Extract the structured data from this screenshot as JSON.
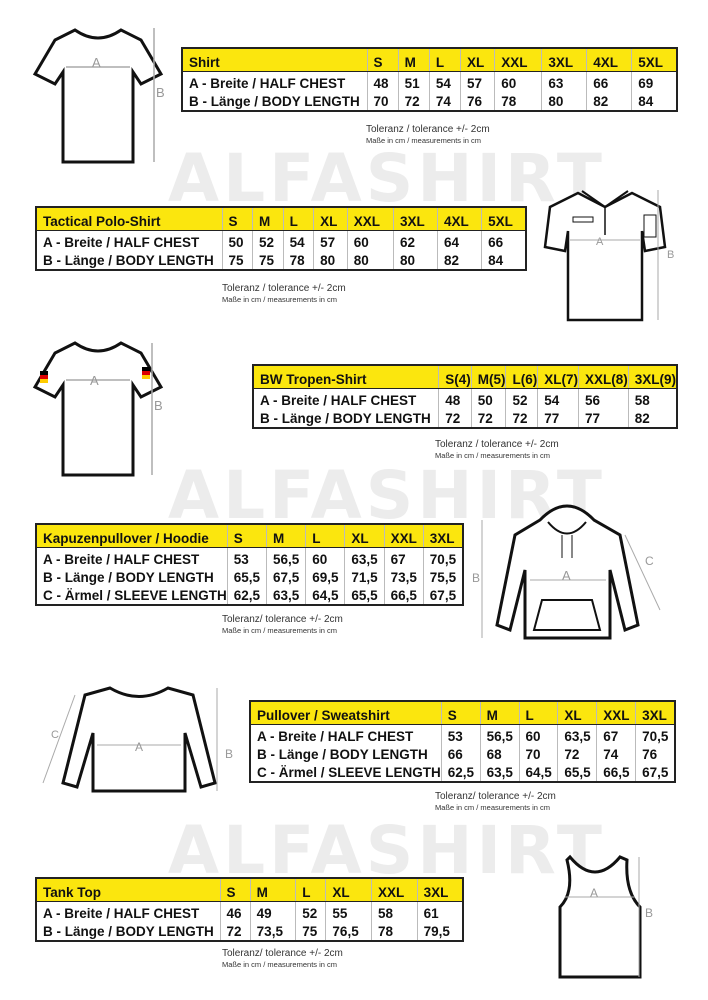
{
  "watermark": "ALFASHIRT",
  "tolerance": {
    "standard": "Toleranz / tolerance +/- 2cm",
    "compact": "Toleranz/ tolerance +/- 2cm",
    "units": "Maße in cm / measurements in cm"
  },
  "diagram_labels": {
    "a": "A",
    "b": "B",
    "c": "C"
  },
  "tables": [
    {
      "title": "Shirt",
      "sizes": [
        "S",
        "M",
        "L",
        "XL",
        "XXL",
        "3XL",
        "4XL",
        "5XL"
      ],
      "rows": [
        {
          "label": "A -  Breite / HALF CHEST",
          "values": [
            "48",
            "51",
            "54",
            "57",
            "60",
            "63",
            "66",
            "69"
          ]
        },
        {
          "label": "B -  Länge / BODY LENGTH",
          "values": [
            "70",
            "72",
            "74",
            "76",
            "78",
            "80",
            "82",
            "84"
          ]
        }
      ]
    },
    {
      "title": "Tactical Polo-Shirt",
      "sizes": [
        "S",
        "M",
        "L",
        "XL",
        "XXL",
        "3XL",
        "4XL",
        "5XL"
      ],
      "rows": [
        {
          "label": "A -  Breite / HALF CHEST",
          "values": [
            "50",
            "52",
            "54",
            "57",
            "60",
            "62",
            "64",
            "66"
          ]
        },
        {
          "label": "B -  Länge / BODY LENGTH",
          "values": [
            "75",
            "75",
            "78",
            "80",
            "80",
            "80",
            "82",
            "84"
          ]
        }
      ]
    },
    {
      "title": "BW Tropen-Shirt",
      "sizes": [
        "S(4)",
        "M(5)",
        "L(6)",
        "XL(7)",
        "XXL(8)",
        "3XL(9)"
      ],
      "rows": [
        {
          "label": "A -  Breite / HALF CHEST",
          "values": [
            "48",
            "50",
            "52",
            "54",
            "56",
            "58"
          ]
        },
        {
          "label": "B -  Länge / BODY LENGTH",
          "values": [
            "72",
            "72",
            "72",
            "77",
            "77",
            "82"
          ]
        }
      ]
    },
    {
      "title": "Kapuzenpullover / Hoodie",
      "sizes": [
        "S",
        "M",
        "L",
        "XL",
        "XXL",
        "3XL"
      ],
      "rows": [
        {
          "label": "A -  Breite / HALF CHEST",
          "values": [
            "53",
            "56,5",
            "60",
            "63,5",
            "67",
            "70,5"
          ]
        },
        {
          "label": "B -  Länge / BODY LENGTH",
          "values": [
            "65,5",
            "67,5",
            "69,5",
            "71,5",
            "73,5",
            "75,5"
          ]
        },
        {
          "label": "C -  Ärmel / SLEEVE LENGTH",
          "values": [
            "62,5",
            "63,5",
            "64,5",
            "65,5",
            "66,5",
            "67,5"
          ]
        }
      ]
    },
    {
      "title": "Pullover / Sweatshirt",
      "sizes": [
        "S",
        "M",
        "L",
        "XL",
        "XXL",
        "3XL"
      ],
      "rows": [
        {
          "label": "A -  Breite / HALF CHEST",
          "values": [
            "53",
            "56,5",
            "60",
            "63,5",
            "67",
            "70,5"
          ]
        },
        {
          "label": "B -  Länge / BODY LENGTH",
          "values": [
            "66",
            "68",
            "70",
            "72",
            "74",
            "76"
          ]
        },
        {
          "label": "C -  Ärmel / SLEEVE LENGTH",
          "values": [
            "62,5",
            "63,5",
            "64,5",
            "65,5",
            "66,5",
            "67,5"
          ]
        }
      ]
    },
    {
      "title": "Tank Top",
      "sizes": [
        "S",
        "M",
        "L",
        "XL",
        "XXL",
        "3XL"
      ],
      "rows": [
        {
          "label": "A -  Breite / HALF CHEST",
          "values": [
            "46",
            "49",
            "52",
            "55",
            "58",
            "61"
          ]
        },
        {
          "label": "B -  Länge / BODY LENGTH",
          "values": [
            "72",
            "73,5",
            "75",
            "76,5",
            "78",
            "79,5"
          ]
        }
      ]
    }
  ]
}
